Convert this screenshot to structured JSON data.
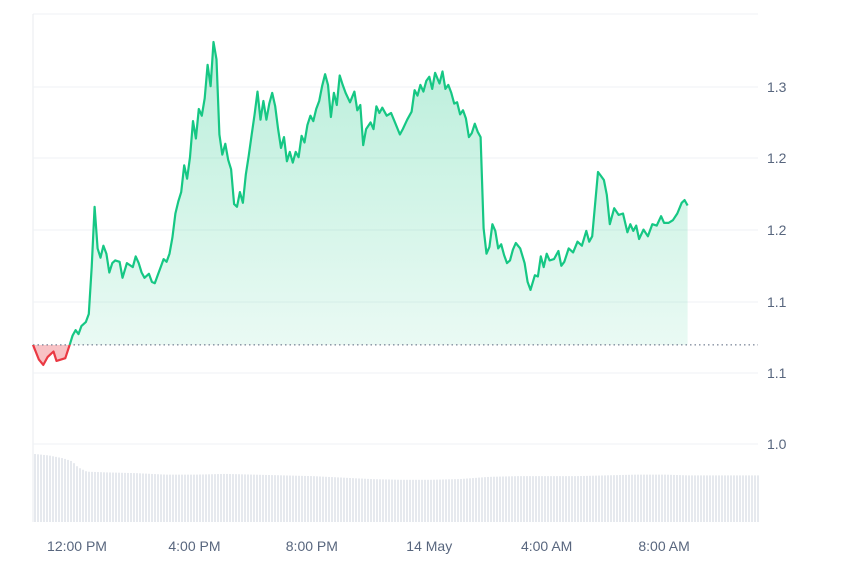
{
  "chart_data": {
    "type": "area",
    "title": "",
    "xlabel": "",
    "ylabel": "",
    "x_tick_labels": [
      "12:00 PM",
      "4:00 PM",
      "8:00 PM",
      "14 May",
      "4:00 AM",
      "8:00 AM"
    ],
    "x_ticks_hours": [
      1,
      5,
      9,
      13,
      17,
      21
    ],
    "x_range_hours": [
      -0.5,
      24.2
    ],
    "y_tick_labels": [
      "1.3",
      "1.2",
      "1.2",
      "1.1",
      "1.1",
      "1.0"
    ],
    "y_tick_values": [
      1.3,
      1.25,
      1.2,
      1.15,
      1.1,
      1.05
    ],
    "ylim": [
      1.0,
      1.35
    ],
    "baseline_value": 1.124,
    "grid": true,
    "colors": {
      "up_line": "#16c784",
      "up_fill": "#16c784",
      "down_line": "#ea3943",
      "down_fill": "#ea3943",
      "volume": "#e6e9ee"
    },
    "series": [
      {
        "values": [
          [
            -0.5,
            1.124
          ],
          [
            -0.3,
            1.113
          ],
          [
            -0.15,
            1.109
          ],
          [
            0.0,
            1.115
          ],
          [
            0.1,
            1.117
          ],
          [
            0.2,
            1.119
          ],
          [
            0.3,
            1.112
          ],
          [
            0.45,
            1.113
          ],
          [
            0.6,
            1.114
          ],
          [
            0.75,
            1.124
          ],
          [
            0.85,
            1.131
          ],
          [
            0.95,
            1.135
          ],
          [
            1.05,
            1.132
          ],
          [
            1.15,
            1.138
          ],
          [
            1.3,
            1.141
          ],
          [
            1.4,
            1.147
          ],
          [
            1.5,
            1.182
          ],
          [
            1.6,
            1.227
          ],
          [
            1.7,
            1.196
          ],
          [
            1.8,
            1.189
          ],
          [
            1.9,
            1.198
          ],
          [
            2.0,
            1.192
          ],
          [
            2.1,
            1.178
          ],
          [
            2.2,
            1.185
          ],
          [
            2.3,
            1.187
          ],
          [
            2.45,
            1.186
          ],
          [
            2.55,
            1.174
          ],
          [
            2.7,
            1.185
          ],
          [
            2.9,
            1.182
          ],
          [
            3.0,
            1.19
          ],
          [
            3.1,
            1.185
          ],
          [
            3.2,
            1.178
          ],
          [
            3.3,
            1.174
          ],
          [
            3.45,
            1.177
          ],
          [
            3.55,
            1.171
          ],
          [
            3.65,
            1.17
          ],
          [
            3.75,
            1.176
          ],
          [
            3.85,
            1.182
          ],
          [
            3.95,
            1.188
          ],
          [
            4.05,
            1.186
          ],
          [
            4.15,
            1.192
          ],
          [
            4.25,
            1.204
          ],
          [
            4.35,
            1.222
          ],
          [
            4.45,
            1.231
          ],
          [
            4.55,
            1.238
          ],
          [
            4.65,
            1.258
          ],
          [
            4.75,
            1.248
          ],
          [
            4.85,
            1.264
          ],
          [
            4.95,
            1.291
          ],
          [
            5.05,
            1.278
          ],
          [
            5.15,
            1.3
          ],
          [
            5.25,
            1.295
          ],
          [
            5.35,
            1.308
          ],
          [
            5.45,
            1.333
          ],
          [
            5.55,
            1.317
          ],
          [
            5.65,
            1.35
          ],
          [
            5.75,
            1.337
          ],
          [
            5.85,
            1.281
          ],
          [
            5.95,
            1.266
          ],
          [
            6.05,
            1.274
          ],
          [
            6.15,
            1.262
          ],
          [
            6.25,
            1.255
          ],
          [
            6.35,
            1.229
          ],
          [
            6.45,
            1.227
          ],
          [
            6.55,
            1.238
          ],
          [
            6.65,
            1.23
          ],
          [
            6.75,
            1.251
          ],
          [
            6.85,
            1.265
          ],
          [
            6.95,
            1.281
          ],
          [
            7.05,
            1.296
          ],
          [
            7.15,
            1.313
          ],
          [
            7.25,
            1.292
          ],
          [
            7.35,
            1.306
          ],
          [
            7.45,
            1.292
          ],
          [
            7.55,
            1.304
          ],
          [
            7.65,
            1.312
          ],
          [
            7.75,
            1.302
          ],
          [
            7.85,
            1.285
          ],
          [
            7.95,
            1.271
          ],
          [
            8.05,
            1.279
          ],
          [
            8.15,
            1.261
          ],
          [
            8.25,
            1.268
          ],
          [
            8.35,
            1.26
          ],
          [
            8.45,
            1.268
          ],
          [
            8.55,
            1.264
          ],
          [
            8.65,
            1.28
          ],
          [
            8.75,
            1.275
          ],
          [
            8.85,
            1.288
          ],
          [
            8.95,
            1.295
          ],
          [
            9.05,
            1.291
          ],
          [
            9.15,
            1.3
          ],
          [
            9.25,
            1.306
          ],
          [
            9.35,
            1.317
          ],
          [
            9.45,
            1.326
          ],
          [
            9.55,
            1.318
          ],
          [
            9.65,
            1.294
          ],
          [
            9.75,
            1.312
          ],
          [
            9.85,
            1.303
          ],
          [
            9.95,
            1.325
          ],
          [
            10.05,
            1.318
          ],
          [
            10.15,
            1.312
          ],
          [
            10.3,
            1.305
          ],
          [
            10.45,
            1.313
          ],
          [
            10.55,
            1.299
          ],
          [
            10.65,
            1.303
          ],
          [
            10.75,
            1.273
          ],
          [
            10.85,
            1.285
          ],
          [
            11.0,
            1.29
          ],
          [
            11.1,
            1.285
          ],
          [
            11.2,
            1.302
          ],
          [
            11.3,
            1.297
          ],
          [
            11.4,
            1.301
          ],
          [
            11.55,
            1.295
          ],
          [
            11.7,
            1.297
          ],
          [
            11.85,
            1.289
          ],
          [
            12.0,
            1.281
          ],
          [
            12.1,
            1.285
          ],
          [
            12.25,
            1.292
          ],
          [
            12.4,
            1.298
          ],
          [
            12.5,
            1.314
          ],
          [
            12.6,
            1.31
          ],
          [
            12.7,
            1.318
          ],
          [
            12.8,
            1.313
          ],
          [
            12.9,
            1.321
          ],
          [
            13.0,
            1.324
          ],
          [
            13.1,
            1.315
          ],
          [
            13.2,
            1.327
          ],
          [
            13.35,
            1.319
          ],
          [
            13.45,
            1.328
          ],
          [
            13.55,
            1.315
          ],
          [
            13.65,
            1.318
          ],
          [
            13.75,
            1.312
          ],
          [
            13.85,
            1.304
          ],
          [
            13.95,
            1.305
          ],
          [
            14.05,
            1.296
          ],
          [
            14.15,
            1.299
          ],
          [
            14.25,
            1.293
          ],
          [
            14.35,
            1.279
          ],
          [
            14.45,
            1.282
          ],
          [
            14.55,
            1.289
          ],
          [
            14.65,
            1.283
          ],
          [
            14.75,
            1.279
          ],
          [
            14.85,
            1.211
          ],
          [
            14.95,
            1.192
          ],
          [
            15.05,
            1.197
          ],
          [
            15.15,
            1.214
          ],
          [
            15.25,
            1.209
          ],
          [
            15.35,
            1.196
          ],
          [
            15.45,
            1.199
          ],
          [
            15.55,
            1.191
          ],
          [
            15.65,
            1.185
          ],
          [
            15.75,
            1.187
          ],
          [
            15.85,
            1.195
          ],
          [
            15.95,
            1.2
          ],
          [
            16.1,
            1.196
          ],
          [
            16.25,
            1.185
          ],
          [
            16.35,
            1.171
          ],
          [
            16.45,
            1.165
          ],
          [
            16.6,
            1.176
          ],
          [
            16.7,
            1.175
          ],
          [
            16.8,
            1.19
          ],
          [
            16.9,
            1.182
          ],
          [
            17.0,
            1.192
          ],
          [
            17.1,
            1.187
          ],
          [
            17.25,
            1.188
          ],
          [
            17.4,
            1.194
          ],
          [
            17.5,
            1.183
          ],
          [
            17.6,
            1.186
          ],
          [
            17.75,
            1.196
          ],
          [
            17.9,
            1.193
          ],
          [
            18.05,
            1.201
          ],
          [
            18.2,
            1.198
          ],
          [
            18.35,
            1.209
          ],
          [
            18.45,
            1.201
          ],
          [
            18.55,
            1.205
          ],
          [
            18.65,
            1.229
          ],
          [
            18.75,
            1.253
          ],
          [
            18.85,
            1.25
          ],
          [
            18.95,
            1.247
          ],
          [
            19.05,
            1.236
          ],
          [
            19.15,
            1.214
          ],
          [
            19.3,
            1.226
          ],
          [
            19.45,
            1.221
          ],
          [
            19.6,
            1.222
          ],
          [
            19.75,
            1.208
          ],
          [
            19.85,
            1.214
          ],
          [
            19.95,
            1.209
          ],
          [
            20.05,
            1.213
          ],
          [
            20.15,
            1.203
          ],
          [
            20.3,
            1.21
          ],
          [
            20.45,
            1.205
          ],
          [
            20.6,
            1.214
          ],
          [
            20.75,
            1.213
          ],
          [
            20.9,
            1.22
          ],
          [
            21.0,
            1.215
          ],
          [
            21.15,
            1.215
          ],
          [
            21.3,
            1.217
          ],
          [
            21.45,
            1.222
          ],
          [
            21.6,
            1.23
          ],
          [
            21.7,
            1.232
          ],
          [
            21.8,
            1.228
          ]
        ]
      }
    ],
    "volume": {
      "note": "",
      "values": [
        [
          -0.5,
          0.092
        ],
        [
          0.0,
          0.09
        ],
        [
          0.5,
          0.086
        ],
        [
          0.8,
          0.082
        ],
        [
          1.0,
          0.074
        ],
        [
          1.3,
          0.068
        ],
        [
          2.0,
          0.067
        ],
        [
          3.0,
          0.066
        ],
        [
          4.0,
          0.064
        ],
        [
          5.0,
          0.064
        ],
        [
          6.0,
          0.065
        ],
        [
          7.0,
          0.064
        ],
        [
          8.0,
          0.063
        ],
        [
          9.0,
          0.062
        ],
        [
          10.0,
          0.06
        ],
        [
          11.0,
          0.058
        ],
        [
          12.0,
          0.057
        ],
        [
          13.0,
          0.057
        ],
        [
          14.0,
          0.058
        ],
        [
          15.0,
          0.061
        ],
        [
          16.0,
          0.062
        ],
        [
          17.0,
          0.062
        ],
        [
          18.0,
          0.062
        ],
        [
          19.0,
          0.063
        ],
        [
          20.0,
          0.064
        ],
        [
          21.0,
          0.064
        ],
        [
          21.8,
          0.063
        ]
      ]
    }
  }
}
